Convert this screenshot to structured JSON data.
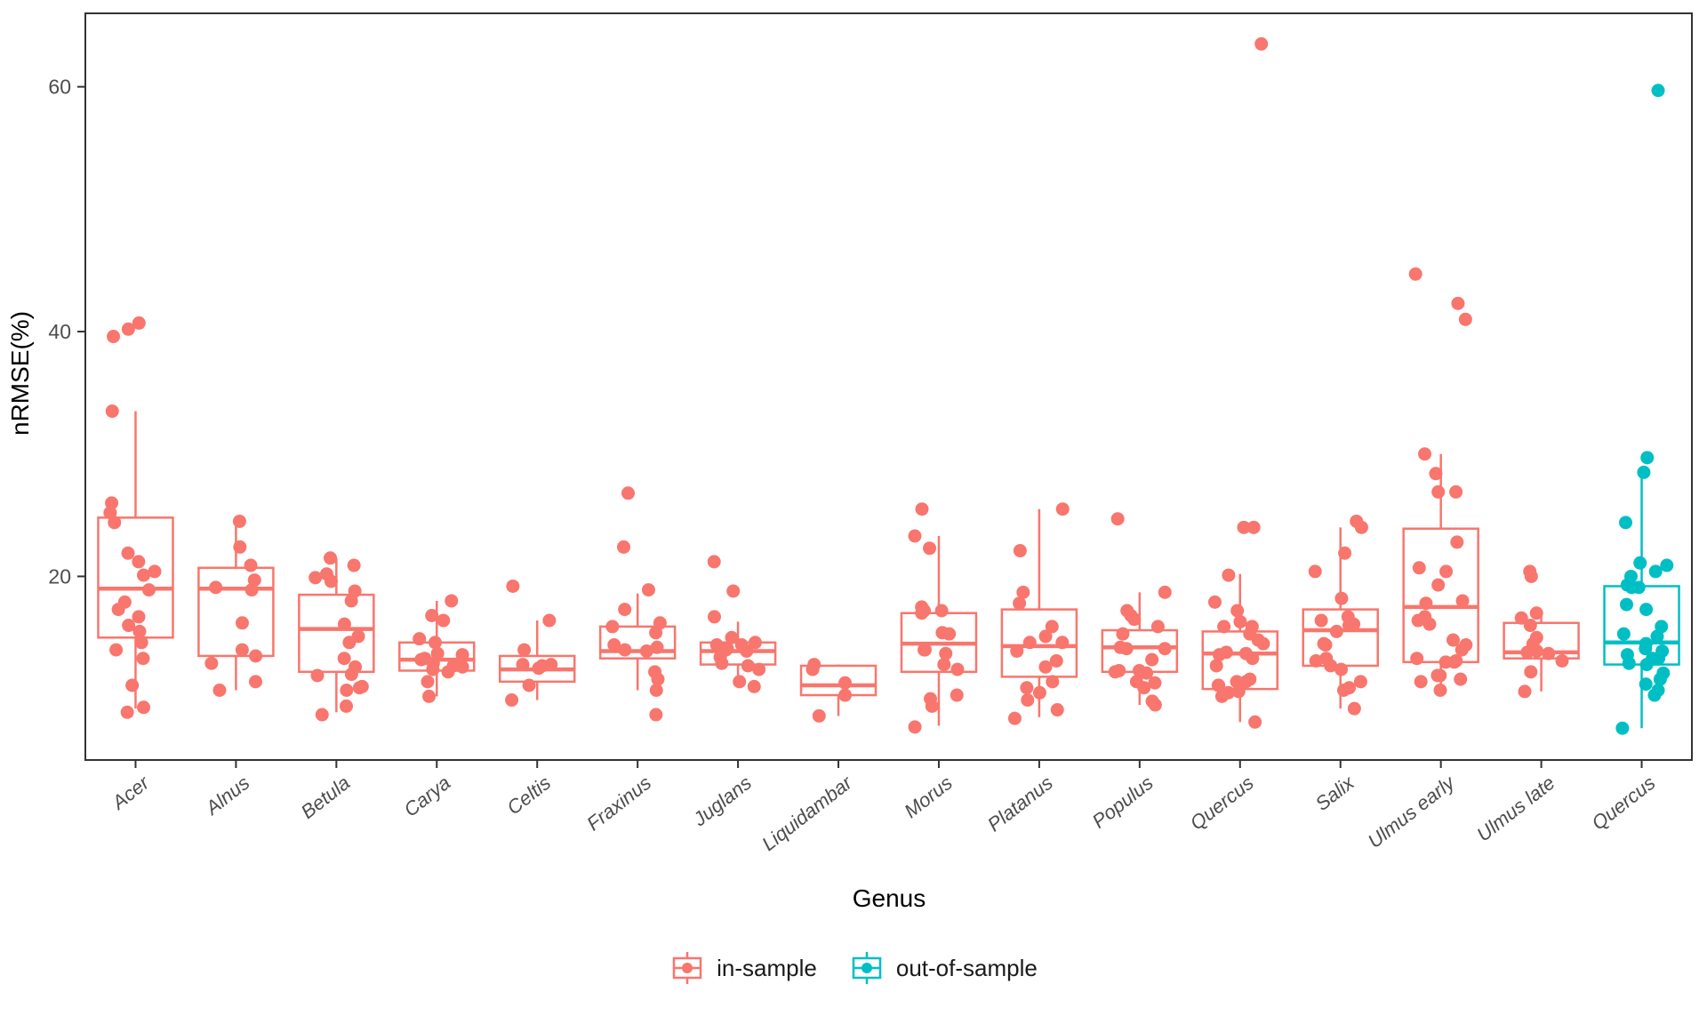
{
  "chart_data": {
    "type": "boxplot",
    "title": "",
    "xlabel": "Genus",
    "ylabel": "nRMSE(%)",
    "ylim": [
      5,
      66
    ],
    "yticks": [
      20,
      40,
      60
    ],
    "grid": false,
    "legend_position": "bottom",
    "legend": [
      {
        "label": "in-sample",
        "color": "#F8766D"
      },
      {
        "label": "out-of-sample",
        "color": "#00BFC4"
      }
    ],
    "groups": [
      {
        "genus": "Acer",
        "sample": "in-sample",
        "box": {
          "whisker_low": 9.2,
          "q1": 15.0,
          "median": 19.0,
          "q3": 24.8,
          "whisker_high": 33.5
        },
        "points": [
          40.7,
          40.2,
          39.6,
          33.5,
          26.0,
          25.2,
          24.4,
          21.9,
          21.2,
          20.4,
          20.1,
          18.9,
          17.9,
          17.3,
          16.7,
          16.0,
          15.5,
          14.6,
          14.0,
          13.3,
          11.1,
          9.3,
          8.9
        ]
      },
      {
        "genus": "Alnus",
        "sample": "in-sample",
        "box": {
          "whisker_low": 10.7,
          "q1": 13.5,
          "median": 19.0,
          "q3": 20.7,
          "whisker_high": 24.5
        },
        "points": [
          24.5,
          22.4,
          20.9,
          19.7,
          19.1,
          18.9,
          16.2,
          14.0,
          13.5,
          12.9,
          11.4,
          10.7
        ]
      },
      {
        "genus": "Betula",
        "sample": "in-sample",
        "box": {
          "whisker_low": 8.9,
          "q1": 12.2,
          "median": 15.7,
          "q3": 18.5,
          "whisker_high": 21.5
        },
        "points": [
          21.5,
          20.9,
          20.2,
          19.9,
          19.6,
          18.8,
          18.0,
          16.1,
          15.1,
          14.6,
          13.3,
          12.6,
          12.0,
          11.9,
          11.0,
          10.9,
          10.7,
          9.4,
          8.7
        ]
      },
      {
        "genus": "Carya",
        "sample": "in-sample",
        "box": {
          "whisker_low": 10.2,
          "q1": 12.3,
          "median": 13.2,
          "q3": 14.6,
          "whisker_high": 18.0
        },
        "points": [
          18.0,
          16.8,
          16.4,
          14.9,
          14.6,
          13.7,
          13.6,
          13.3,
          13.2,
          12.9,
          12.7,
          12.6,
          12.4,
          12.2,
          11.4,
          10.2
        ]
      },
      {
        "genus": "Celtis",
        "sample": "in-sample",
        "box": {
          "whisker_low": 9.9,
          "q1": 11.4,
          "median": 12.4,
          "q3": 13.5,
          "whisker_high": 16.4
        },
        "points": [
          19.2,
          16.4,
          14.0,
          12.8,
          12.8,
          12.7,
          12.5,
          11.1,
          9.9
        ]
      },
      {
        "genus": "Fraxinus",
        "sample": "in-sample",
        "box": {
          "whisker_low": 10.7,
          "q1": 13.3,
          "median": 13.9,
          "q3": 15.9,
          "whisker_high": 18.6
        },
        "points": [
          26.8,
          22.4,
          18.9,
          17.3,
          16.2,
          15.9,
          15.4,
          14.4,
          14.2,
          14.0,
          13.9,
          12.2,
          11.6,
          10.7,
          8.7
        ]
      },
      {
        "genus": "Juglans",
        "sample": "in-sample",
        "box": {
          "whisker_low": 11.0,
          "q1": 12.8,
          "median": 13.9,
          "q3": 14.6,
          "whisker_high": 16.3
        },
        "points": [
          21.2,
          18.8,
          16.7,
          15.0,
          14.6,
          14.4,
          14.4,
          14.1,
          14.0,
          13.9,
          13.4,
          12.9,
          12.7,
          12.4,
          11.4,
          11.0
        ]
      },
      {
        "genus": "Liquidambar",
        "sample": "in-sample",
        "box": {
          "whisker_low": 8.6,
          "q1": 10.3,
          "median": 11.1,
          "q3": 12.7,
          "whisker_high": 12.8
        },
        "points": [
          12.8,
          12.4,
          11.3,
          10.3,
          8.6
        ]
      },
      {
        "genus": "Morus",
        "sample": "in-sample",
        "box": {
          "whisker_low": 7.8,
          "q1": 12.2,
          "median": 14.5,
          "q3": 17.0,
          "whisker_high": 23.3
        },
        "points": [
          25.5,
          23.3,
          22.3,
          17.5,
          17.2,
          17.2,
          17.0,
          15.4,
          15.3,
          14.0,
          14.0,
          13.7,
          12.8,
          12.4,
          10.3,
          10.0,
          9.4,
          7.7
        ]
      },
      {
        "genus": "Platanus",
        "sample": "in-sample",
        "box": {
          "whisker_low": 8.5,
          "q1": 11.8,
          "median": 14.3,
          "q3": 17.3,
          "whisker_high": 25.5
        },
        "points": [
          25.5,
          22.1,
          18.7,
          17.8,
          15.9,
          15.1,
          14.6,
          14.6,
          13.9,
          13.1,
          12.6,
          11.4,
          10.9,
          10.5,
          9.9,
          9.1,
          8.4
        ]
      },
      {
        "genus": "Populus",
        "sample": "in-sample",
        "box": {
          "whisker_low": 9.5,
          "q1": 12.2,
          "median": 14.2,
          "q3": 15.6,
          "whisker_high": 18.7
        },
        "points": [
          24.7,
          18.7,
          17.2,
          16.8,
          16.5,
          15.9,
          15.3,
          14.2,
          14.1,
          14.1,
          13.2,
          12.3,
          12.3,
          12.2,
          12.1,
          11.4,
          11.3,
          10.9,
          9.8,
          9.5
        ]
      },
      {
        "genus": "Quercus",
        "sample": "in-sample",
        "box": {
          "whisker_low": 8.1,
          "q1": 10.8,
          "median": 13.7,
          "q3": 15.5,
          "whisker_high": 20.2
        },
        "points": [
          63.5,
          24.0,
          24.0,
          20.1,
          17.9,
          17.2,
          16.3,
          15.9,
          15.9,
          15.3,
          14.8,
          14.5,
          13.8,
          13.7,
          13.6,
          13.3,
          12.7,
          11.6,
          11.4,
          11.4,
          11.1,
          11.1,
          10.6,
          10.5,
          10.2,
          8.1
        ]
      },
      {
        "genus": "Salix",
        "sample": "in-sample",
        "box": {
          "whisker_low": 9.2,
          "q1": 12.7,
          "median": 15.6,
          "q3": 17.3,
          "whisker_high": 24.0
        },
        "points": [
          24.5,
          24.0,
          21.9,
          20.4,
          18.2,
          16.7,
          16.4,
          16.1,
          16.0,
          15.5,
          14.5,
          14.4,
          13.3,
          13.1,
          12.7,
          12.4,
          11.4,
          10.9,
          10.7,
          9.2
        ]
      },
      {
        "genus": "Ulmus early",
        "sample": "in-sample",
        "box": {
          "whisker_low": 11.0,
          "q1": 13.0,
          "median": 17.5,
          "q3": 23.9,
          "whisker_high": 30.0
        },
        "points": [
          44.7,
          42.3,
          41.0,
          30.0,
          28.4,
          26.9,
          26.9,
          22.8,
          20.7,
          20.4,
          19.3,
          18.0,
          17.8,
          16.7,
          16.4,
          16.1,
          14.8,
          14.4,
          14.0,
          13.3,
          13.1,
          13.0,
          13.0,
          11.9,
          11.9,
          11.6,
          11.4,
          10.7
        ]
      },
      {
        "genus": "Ulmus late",
        "sample": "in-sample",
        "box": {
          "whisker_low": 10.6,
          "q1": 13.3,
          "median": 13.8,
          "q3": 16.2,
          "whisker_high": 17.0
        },
        "points": [
          20.4,
          20.0,
          17.0,
          16.6,
          16.0,
          15.0,
          14.5,
          13.9,
          13.8,
          13.7,
          13.1,
          12.2,
          10.6
        ]
      },
      {
        "genus": "Quercus",
        "sample": "out-of-sample",
        "box": {
          "whisker_low": 7.6,
          "q1": 12.8,
          "median": 14.6,
          "q3": 19.2,
          "whisker_high": 28.5
        },
        "points": [
          59.7,
          29.7,
          28.5,
          24.4,
          21.1,
          20.9,
          20.4,
          20.0,
          19.3,
          19.1,
          19.1,
          17.7,
          17.3,
          15.9,
          15.3,
          15.1,
          14.5,
          14.1,
          13.9,
          13.6,
          13.3,
          13.3,
          12.9,
          12.8,
          12.1,
          11.6,
          11.2,
          10.7,
          10.3,
          7.6
        ]
      }
    ],
    "axis_color": "#333333",
    "tick_label_color": "#4d4d4d"
  }
}
